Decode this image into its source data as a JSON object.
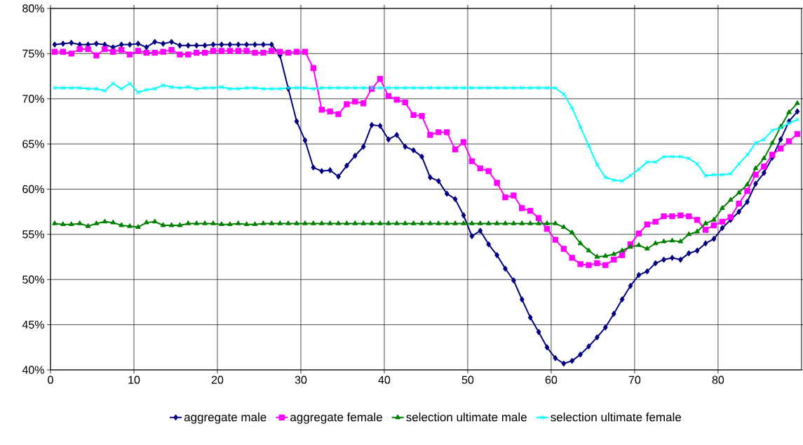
{
  "chart_data": {
    "type": "line",
    "x": [
      0.5,
      1.5,
      2.5,
      3.5,
      4.5,
      5.5,
      6.5,
      7.5,
      8.5,
      9.5,
      10.5,
      11.5,
      12.5,
      13.5,
      14.5,
      15.5,
      16.5,
      17.5,
      18.5,
      19.5,
      20.5,
      21.5,
      22.5,
      23.5,
      24.5,
      25.5,
      26.5,
      27.5,
      28.5,
      29.5,
      30.5,
      31.5,
      32.5,
      33.5,
      34.5,
      35.5,
      36.5,
      37.5,
      38.5,
      39.5,
      40.5,
      41.5,
      42.5,
      43.5,
      44.5,
      45.5,
      46.5,
      47.5,
      48.5,
      49.5,
      50.5,
      51.5,
      52.5,
      53.5,
      54.5,
      55.5,
      56.5,
      57.5,
      58.5,
      59.5,
      60.5,
      61.5,
      62.5,
      63.5,
      64.5,
      65.5,
      66.5,
      67.5,
      68.5,
      69.5,
      70.5,
      71.5,
      72.5,
      73.5,
      74.5,
      75.5,
      76.5,
      77.5,
      78.5,
      79.5,
      80.5,
      81.5,
      82.5,
      83.5,
      84.5,
      85.5,
      86.5,
      87.5,
      88.5,
      89.5
    ],
    "series": [
      {
        "name": "aggregate male",
        "color": "#000080",
        "marker": "diamond",
        "values": [
          76.0,
          76.1,
          76.2,
          76.0,
          76.0,
          76.1,
          76.0,
          75.7,
          76.0,
          76.0,
          76.1,
          75.7,
          76.3,
          76.1,
          76.3,
          75.9,
          75.9,
          75.9,
          75.9,
          76.0,
          76.0,
          76.0,
          76.0,
          76.0,
          76.0,
          76.0,
          76.0,
          74.8,
          71.1,
          67.5,
          65.4,
          62.4,
          62.0,
          62.1,
          61.4,
          62.6,
          63.7,
          64.7,
          67.1,
          67.0,
          65.5,
          66.0,
          64.7,
          64.3,
          63.6,
          61.3,
          60.9,
          59.5,
          58.9,
          57.1,
          54.8,
          55.4,
          53.9,
          52.7,
          51.2,
          49.9,
          47.8,
          45.8,
          44.2,
          42.5,
          41.3,
          40.7,
          41.0,
          41.7,
          42.6,
          43.6,
          44.7,
          46.2,
          47.8,
          49.3,
          50.5,
          50.9,
          51.8,
          52.2,
          52.4,
          52.2,
          52.9,
          53.2,
          54.0,
          54.5,
          55.7,
          56.6,
          57.5,
          58.6,
          60.6,
          61.8,
          63.5,
          65.5,
          67.5,
          68.6
        ]
      },
      {
        "name": "aggregate female",
        "color": "#ff00ff",
        "marker": "square",
        "values": [
          75.2,
          75.2,
          75.0,
          75.5,
          75.5,
          74.8,
          75.5,
          75.2,
          75.4,
          74.9,
          75.3,
          75.1,
          75.1,
          75.2,
          75.4,
          74.9,
          74.9,
          75.1,
          75.1,
          75.3,
          75.3,
          75.3,
          75.3,
          75.3,
          75.1,
          75.1,
          75.3,
          75.2,
          75.1,
          75.2,
          75.2,
          73.4,
          68.8,
          68.6,
          68.3,
          69.4,
          69.7,
          69.5,
          71.1,
          72.2,
          70.3,
          69.9,
          69.6,
          68.2,
          68.1,
          66.0,
          66.3,
          66.3,
          64.4,
          65.2,
          63.1,
          62.3,
          62.0,
          60.7,
          59.1,
          59.3,
          57.9,
          57.6,
          56.8,
          55.6,
          54.4,
          53.4,
          52.4,
          51.7,
          51.6,
          51.8,
          51.6,
          52.2,
          52.7,
          53.9,
          55.1,
          56.1,
          56.4,
          57.0,
          57.0,
          57.1,
          57.0,
          56.6,
          55.5,
          56.0,
          56.4,
          56.9,
          58.4,
          59.8,
          61.6,
          62.5,
          63.8,
          64.5,
          65.3,
          66.1
        ]
      },
      {
        "name": "selection ultimate male",
        "color": "#008000",
        "marker": "triangle",
        "values": [
          56.2,
          56.1,
          56.1,
          56.2,
          55.9,
          56.2,
          56.4,
          56.3,
          56.0,
          55.9,
          55.8,
          56.3,
          56.4,
          56.0,
          56.0,
          56.0,
          56.2,
          56.2,
          56.2,
          56.2,
          56.1,
          56.1,
          56.2,
          56.1,
          56.1,
          56.2,
          56.2,
          56.2,
          56.2,
          56.2,
          56.2,
          56.2,
          56.2,
          56.2,
          56.2,
          56.2,
          56.2,
          56.2,
          56.2,
          56.2,
          56.2,
          56.2,
          56.2,
          56.2,
          56.2,
          56.2,
          56.2,
          56.2,
          56.2,
          56.2,
          56.2,
          56.2,
          56.2,
          56.2,
          56.2,
          56.2,
          56.2,
          56.2,
          56.2,
          56.2,
          56.2,
          55.8,
          55.2,
          54.0,
          53.2,
          52.5,
          52.6,
          52.8,
          53.2,
          53.6,
          53.8,
          53.4,
          54.0,
          54.2,
          54.3,
          54.2,
          55.0,
          55.3,
          56.2,
          56.6,
          57.9,
          58.8,
          59.6,
          60.5,
          62.3,
          63.4,
          65.1,
          66.9,
          68.5,
          69.5
        ]
      },
      {
        "name": "selection ultimate female",
        "color": "#00ffff",
        "marker": "cross",
        "values": [
          71.2,
          71.2,
          71.2,
          71.2,
          71.1,
          71.1,
          70.9,
          71.7,
          71.1,
          71.7,
          70.7,
          71.0,
          71.1,
          71.5,
          71.3,
          71.2,
          71.3,
          71.1,
          71.2,
          71.2,
          71.3,
          71.1,
          71.1,
          71.2,
          71.2,
          71.1,
          71.1,
          71.1,
          71.2,
          71.2,
          71.2,
          71.1,
          71.2,
          71.2,
          71.2,
          71.2,
          71.2,
          71.2,
          71.2,
          71.2,
          71.2,
          71.2,
          71.2,
          71.2,
          71.2,
          71.2,
          71.2,
          71.2,
          71.2,
          71.2,
          71.2,
          71.2,
          71.2,
          71.2,
          71.2,
          71.2,
          71.2,
          71.2,
          71.2,
          71.2,
          71.2,
          70.5,
          69.0,
          66.9,
          64.8,
          62.7,
          61.3,
          61.0,
          60.9,
          61.5,
          62.2,
          63.0,
          63.0,
          63.6,
          63.6,
          63.6,
          63.4,
          62.8,
          61.5,
          61.6,
          61.6,
          61.7,
          62.8,
          63.8,
          65.1,
          65.5,
          66.5,
          66.8,
          67.3,
          67.7
        ]
      }
    ],
    "xlim": [
      0,
      90
    ],
    "xticks": [
      0,
      10,
      20,
      30,
      40,
      50,
      60,
      70,
      80
    ],
    "ylim": [
      40,
      80
    ],
    "yticks": [
      {
        "value": 40,
        "label": "40%"
      },
      {
        "value": 45,
        "label": "45%"
      },
      {
        "value": 50,
        "label": "50%"
      },
      {
        "value": 55,
        "label": "55%"
      },
      {
        "value": 60,
        "label": "60%"
      },
      {
        "value": 65,
        "label": "65%"
      },
      {
        "value": 70,
        "label": "70%"
      },
      {
        "value": 75,
        "label": "75%"
      },
      {
        "value": 80,
        "label": "80%"
      }
    ],
    "grid": true,
    "legend": "bottom",
    "line_style": "solid"
  }
}
